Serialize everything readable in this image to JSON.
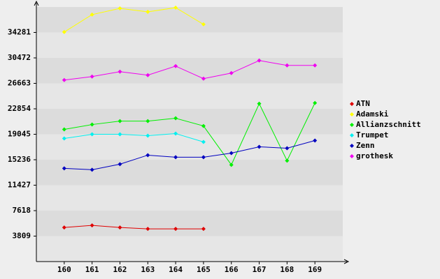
{
  "chart_data": {
    "type": "line",
    "x": [
      160,
      161,
      162,
      163,
      164,
      165,
      166,
      167,
      168,
      169
    ],
    "xlim": [
      159,
      170
    ],
    "xticks": [
      160,
      161,
      162,
      163,
      164,
      165,
      166,
      167,
      168,
      169
    ],
    "ylim": [
      0,
      38090
    ],
    "yticks": [
      3809,
      7618,
      11427,
      15236,
      19045,
      22854,
      26663,
      30472,
      34281
    ],
    "grid": true,
    "legend": "right",
    "series": [
      {
        "name": "ATN",
        "color": "#e00000",
        "values": [
          5100,
          5410,
          5100,
          4890,
          4890,
          4890,
          null,
          null,
          null,
          null
        ]
      },
      {
        "name": "Adamski",
        "color": "#ffff00",
        "values": [
          34340,
          36950,
          37880,
          37360,
          37990,
          35490,
          null,
          null,
          null,
          null
        ]
      },
      {
        "name": "Allianzschnitt",
        "color": "#00f000",
        "values": [
          19770,
          20500,
          21020,
          21020,
          21440,
          20290,
          14470,
          23620,
          15090,
          23730
        ]
      },
      {
        "name": "Trumpet",
        "color": "#00f0f0",
        "values": [
          18420,
          19040,
          19040,
          18840,
          19150,
          17900,
          null,
          null,
          null,
          null
        ]
      },
      {
        "name": "Zenn",
        "color": "#0000c0",
        "values": [
          13950,
          13740,
          14570,
          15920,
          15610,
          15610,
          16230,
          17170,
          16960,
          18110
        ]
      },
      {
        "name": "grothesk",
        "color": "#f000f0",
        "values": [
          27160,
          27680,
          28410,
          27890,
          29240,
          27370,
          28200,
          30080,
          29350,
          29350
        ]
      }
    ]
  }
}
